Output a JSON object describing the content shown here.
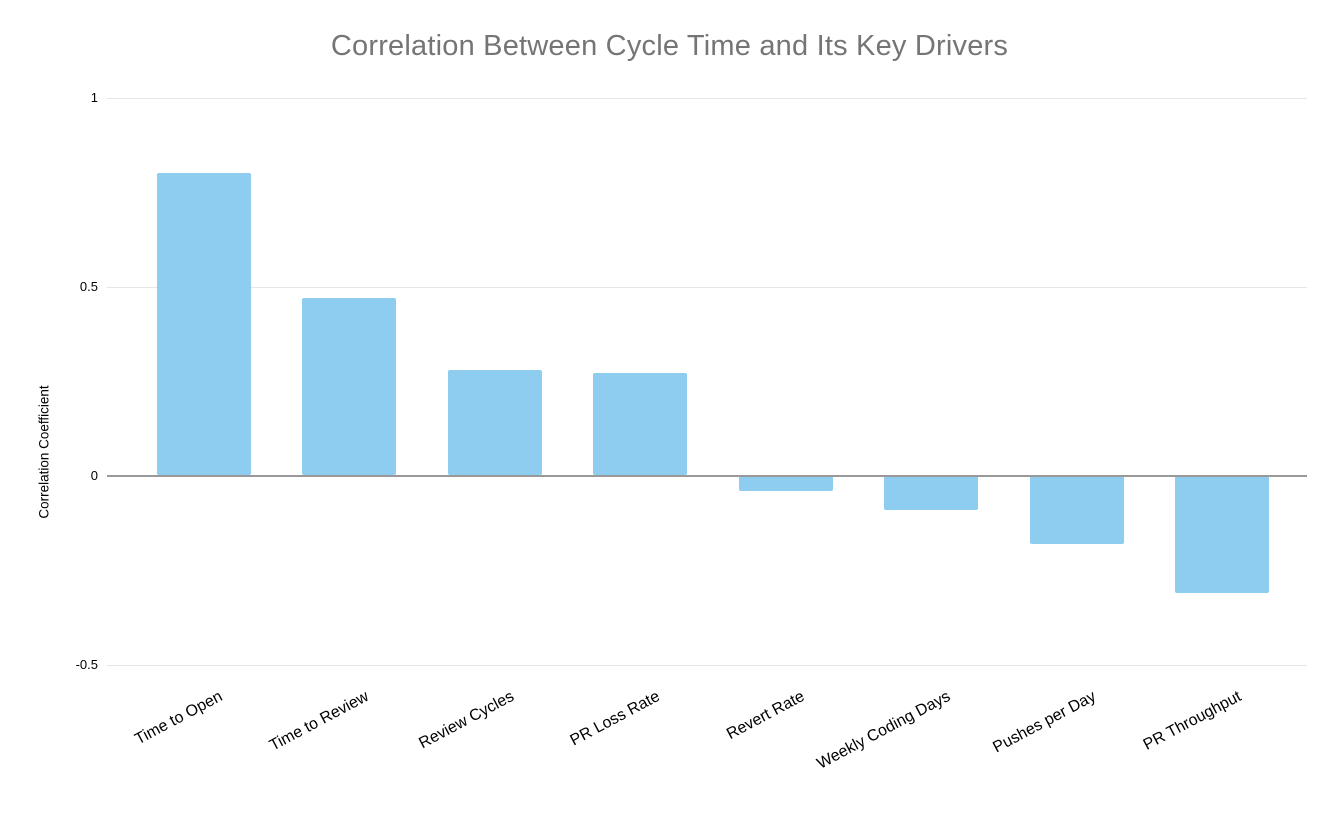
{
  "chart_data": {
    "type": "bar",
    "title": "Correlation Between Cycle Time and Its Key Drivers",
    "xlabel": "",
    "ylabel": "Correlation Coefficient",
    "categories": [
      "Time to Open",
      "Time to Review",
      "Review Cycles",
      "PR Loss Rate",
      "Revert Rate",
      "Weekly Coding Days",
      "Pushes per Day",
      "PR Throughput"
    ],
    "values": [
      0.8,
      0.47,
      0.28,
      0.27,
      -0.04,
      -0.09,
      -0.18,
      -0.31
    ],
    "yticks": [
      {
        "label": "1",
        "value": 1
      },
      {
        "label": "0.5",
        "value": 0.5
      },
      {
        "label": "0",
        "value": 0
      },
      {
        "label": "-0.5",
        "value": -0.5
      }
    ],
    "ylim": [
      -0.5,
      1
    ],
    "grid": "horizontal",
    "legend": "none",
    "colors": {
      "bar": "#8FCDF0",
      "gridline": "#E6E6E6",
      "zero_axis": "#999999",
      "title_text": "#757575",
      "tick_text": "#000000",
      "category_text": "#000000",
      "background": "#FFFFFF"
    }
  }
}
